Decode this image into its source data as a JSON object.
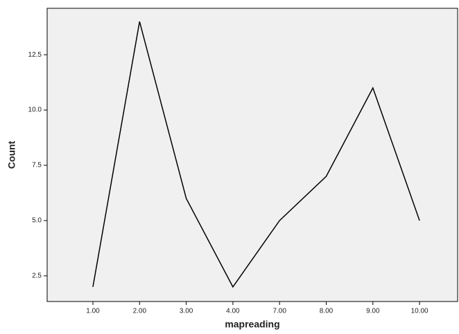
{
  "chart_data": {
    "type": "line",
    "categories": [
      "1.00",
      "2.00",
      "3.00",
      "4.00",
      "7.00",
      "8.00",
      "9.00",
      "10.00"
    ],
    "values": [
      2,
      14,
      6,
      2,
      5,
      7,
      11,
      5
    ],
    "color": "#000000",
    "x_label": "mapreading",
    "y_label": "Count",
    "ylim": [
      1.34,
      14.6
    ],
    "yticks": [
      2.5,
      {
        "value": 5,
        "label": "5.0"
      },
      7.5,
      {
        "value": 10,
        "label": "10.0"
      },
      12.5
    ],
    "background": "#f0f0f0"
  }
}
